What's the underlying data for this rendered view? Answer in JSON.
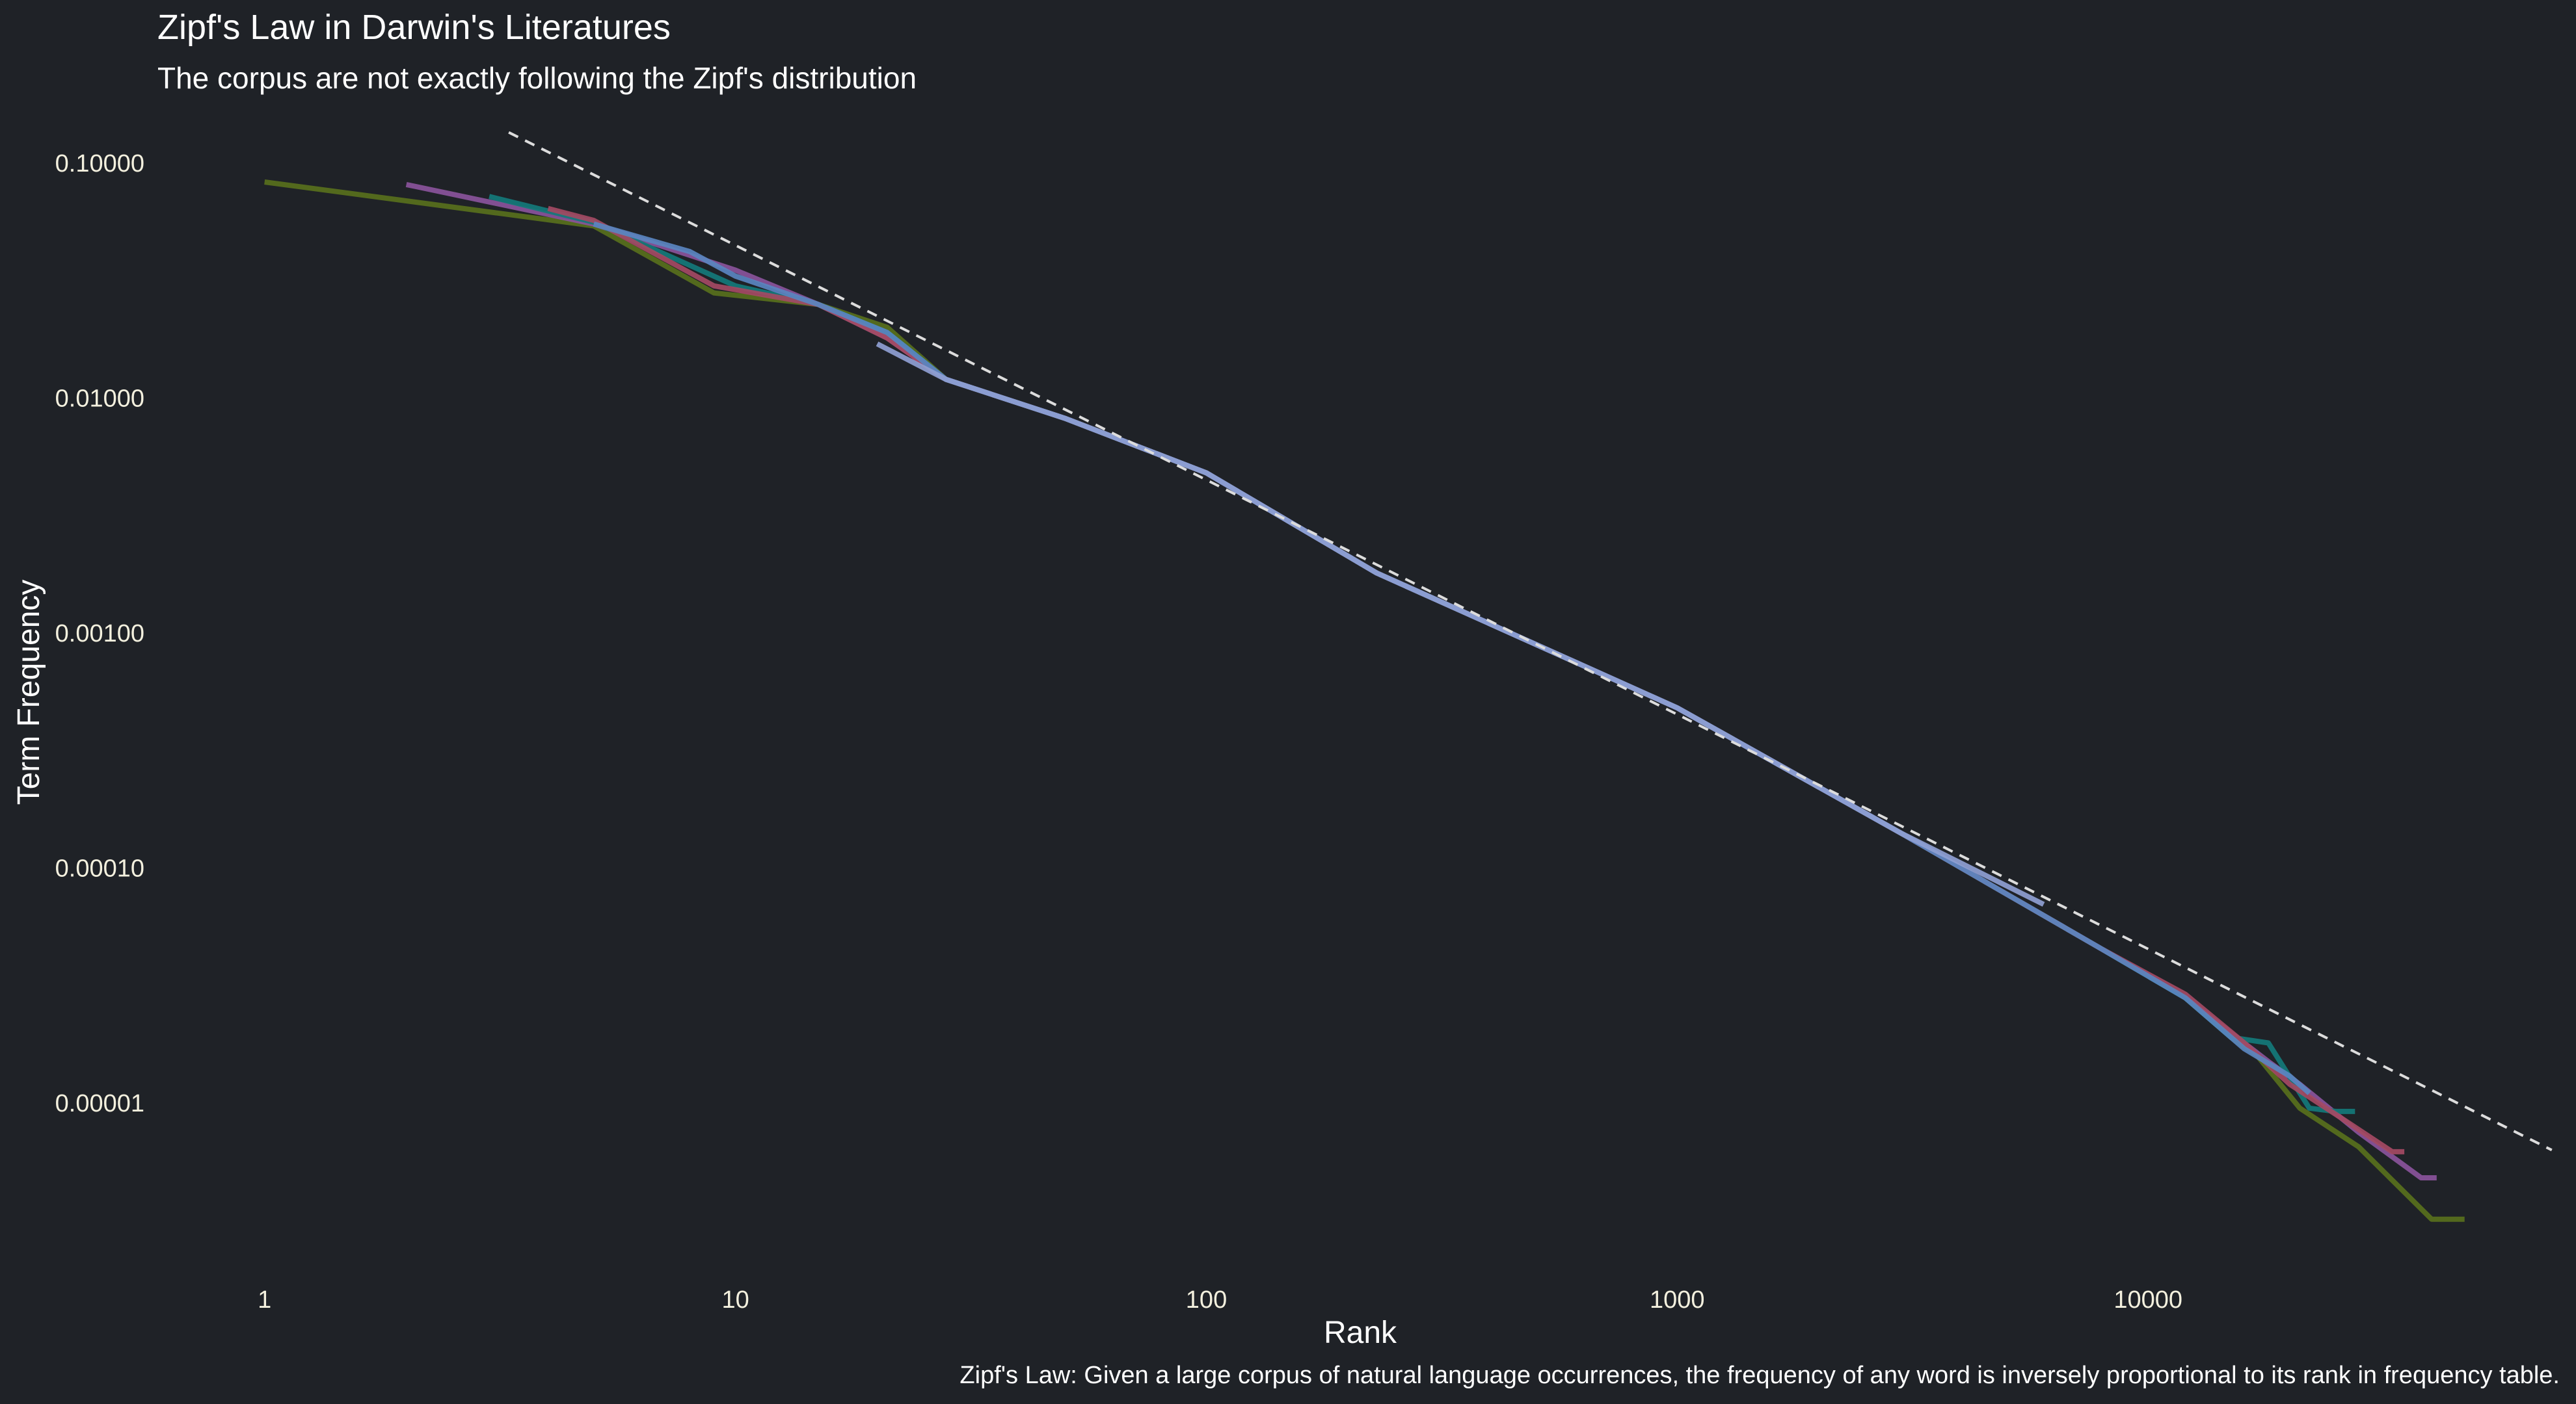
{
  "chart_data": {
    "type": "line",
    "title": "Zipf's Law in Darwin's Literatures",
    "subtitle": "The corpus are not exactly following the Zipf's distribution",
    "xlabel": "Rank",
    "ylabel": "Term Frequency",
    "caption": "Zipf's Law: Given a large corpus of natural language occurrences, the frequency of any word is inversely proportional to its rank in frequency table.",
    "x_scale": "log10",
    "y_scale": "log10",
    "x_ticks": [
      {
        "value": 1,
        "label": "1"
      },
      {
        "value": 10,
        "label": "10"
      },
      {
        "value": 100,
        "label": "100"
      },
      {
        "value": 1000,
        "label": "1000"
      },
      {
        "value": 10000,
        "label": "10000"
      }
    ],
    "y_ticks": [
      {
        "value": 0.1,
        "label": "0.10000"
      },
      {
        "value": 0.01,
        "label": "0.01000"
      },
      {
        "value": 0.001,
        "label": "0.00100"
      },
      {
        "value": 0.0001,
        "label": "0.00010"
      },
      {
        "value": 1e-05,
        "label": "0.00001"
      }
    ],
    "xlim": [
      0.57,
      79000
    ],
    "ylim": [
      1.7e-06,
      0.19
    ],
    "grid": false,
    "legend": "none",
    "reference_line": {
      "description": "dashed Zipf fit line",
      "color": "#dcdcdc",
      "x": [
        3.3,
        72000
      ],
      "y": [
        0.135,
        6.3e-06
      ]
    },
    "series": [
      {
        "color": "#58701c",
        "x": [
          1,
          5,
          9,
          15,
          21,
          28,
          50,
          100,
          230,
          1000,
          3000,
          8000,
          12000,
          15000,
          17000,
          21000,
          28000,
          40000,
          47000
        ],
        "y": [
          0.083,
          0.054,
          0.028,
          0.025,
          0.02,
          0.012,
          0.0082,
          0.0048,
          0.0018,
          0.00048,
          0.00014,
          4.5e-05,
          2.8e-05,
          1.9e-05,
          1.6e-05,
          9.5e-06,
          6.5e-06,
          3.2e-06,
          3.2e-06
        ]
      },
      {
        "color": "#8a549b",
        "x": [
          2,
          5,
          10,
          15,
          21,
          28,
          50,
          100,
          230,
          1000,
          3000,
          8000,
          12000,
          18000,
          21000,
          28000,
          38000,
          41000
        ],
        "y": [
          0.081,
          0.055,
          0.035,
          0.025,
          0.018,
          0.012,
          0.0082,
          0.0048,
          0.0018,
          0.00048,
          0.00014,
          4.5e-05,
          2.8e-05,
          1.5e-05,
          1.2e-05,
          7.5e-06,
          4.8e-06,
          4.8e-06
        ]
      },
      {
        "color": "#137a7a",
        "x": [
          3,
          5,
          10,
          15,
          21,
          28,
          50,
          100,
          230,
          1000,
          3000,
          8000,
          12000,
          15000,
          18000,
          22000,
          25000,
          27500
        ],
        "y": [
          0.072,
          0.056,
          0.03,
          0.025,
          0.019,
          0.012,
          0.0082,
          0.0048,
          0.0018,
          0.00048,
          0.00014,
          4.5e-05,
          2.8e-05,
          1.9e-05,
          1.8e-05,
          9.5e-06,
          9.2e-06,
          9.2e-06
        ]
      },
      {
        "color": "#a44a63",
        "x": [
          4,
          5,
          9,
          15,
          21,
          28,
          50,
          100,
          230,
          1000,
          3000,
          8000,
          12000,
          16000,
          20000,
          26000,
          33000,
          35000
        ],
        "y": [
          0.064,
          0.057,
          0.03,
          0.025,
          0.018,
          0.012,
          0.0082,
          0.0048,
          0.0018,
          0.00048,
          0.00014,
          4.5e-05,
          2.9e-05,
          1.8e-05,
          1.2e-05,
          8.5e-06,
          6.2e-06,
          6.2e-06
        ]
      },
      {
        "color": "#5a86c0",
        "x": [
          5,
          8,
          10,
          15,
          21,
          28,
          50,
          100,
          230,
          1000,
          3000,
          8000,
          12000,
          16000,
          20000,
          22000
        ],
        "y": [
          0.055,
          0.042,
          0.033,
          0.025,
          0.019,
          0.012,
          0.0082,
          0.0048,
          0.0018,
          0.00048,
          0.00014,
          4.5e-05,
          2.8e-05,
          1.7e-05,
          1.3e-05,
          1.1e-05
        ]
      },
      {
        "color": "#8fa0d2",
        "x": [
          20,
          28,
          50,
          100,
          230,
          1000,
          3000,
          6000
        ],
        "y": [
          0.017,
          0.012,
          0.0082,
          0.0048,
          0.0018,
          0.00048,
          0.00014,
          7e-05
        ]
      }
    ]
  }
}
